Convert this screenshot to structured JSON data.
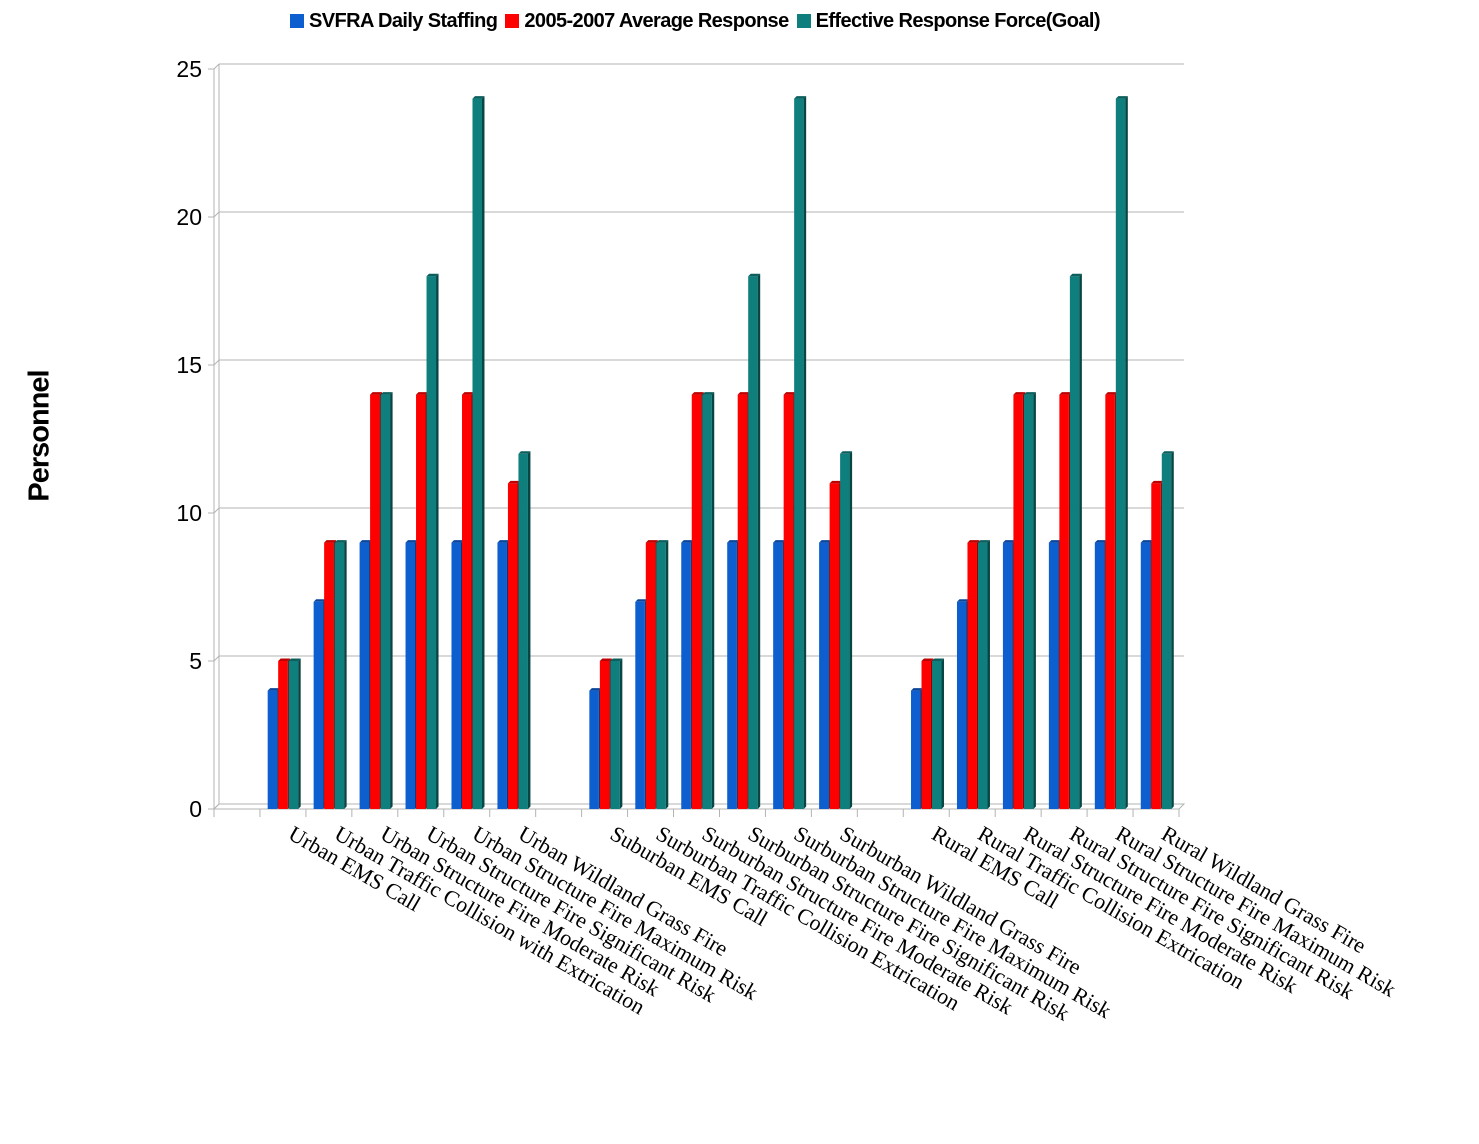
{
  "chart_data": {
    "type": "bar",
    "ylabel": "Personnel",
    "xlabel": "",
    "ylim": [
      0,
      25
    ],
    "yticks": [
      0,
      5,
      10,
      15,
      20,
      25
    ],
    "grid": true,
    "legend_position": "top",
    "categories": [
      "",
      "Urban EMS Call",
      "Urban Traffic Collision with Extrication",
      "Urban Structure Fire Moderate Risk",
      "Urban Structure Fire Significant Risk",
      "Urban Structure Fire Maximum Risk",
      "Urban Wildland Grass Fire",
      "",
      "Suburban EMS Call",
      "Surburban Traffic Collision Extrication",
      "Surburban Structure Fire Moderate Risk",
      "Surburban Structure Fire Significant Risk",
      "Surburban Structure Fire Maximum Risk",
      "Surburban Wildland Grass Fire",
      "",
      "Rural EMS Call",
      "Rural Traffic Collision Extrication",
      "Rural Structure Fire Moderate Risk",
      "Rural Structure Fire Significant Risk",
      "Rural Structure Fire Maximum Risk",
      "Rural Wildland Grass Fire"
    ],
    "series": [
      {
        "name": "SVFRA Daily Staffing",
        "color": "#0d5fd0",
        "values": [
          null,
          4,
          7,
          9,
          9,
          9,
          9,
          null,
          4,
          7,
          9,
          9,
          9,
          9,
          null,
          4,
          7,
          9,
          9,
          9,
          9
        ]
      },
      {
        "name": "2005-2007 Average Response",
        "color": "#ff0000",
        "values": [
          null,
          5,
          9,
          14,
          14,
          14,
          11,
          null,
          5,
          9,
          14,
          14,
          14,
          11,
          null,
          5,
          9,
          14,
          14,
          14,
          11
        ]
      },
      {
        "name": "Effective Response Force(Goal)",
        "color": "#0e7f7c",
        "values": [
          null,
          5,
          9,
          14,
          18,
          24,
          12,
          null,
          5,
          9,
          14,
          18,
          24,
          12,
          null,
          5,
          9,
          14,
          18,
          24,
          12
        ]
      }
    ]
  }
}
